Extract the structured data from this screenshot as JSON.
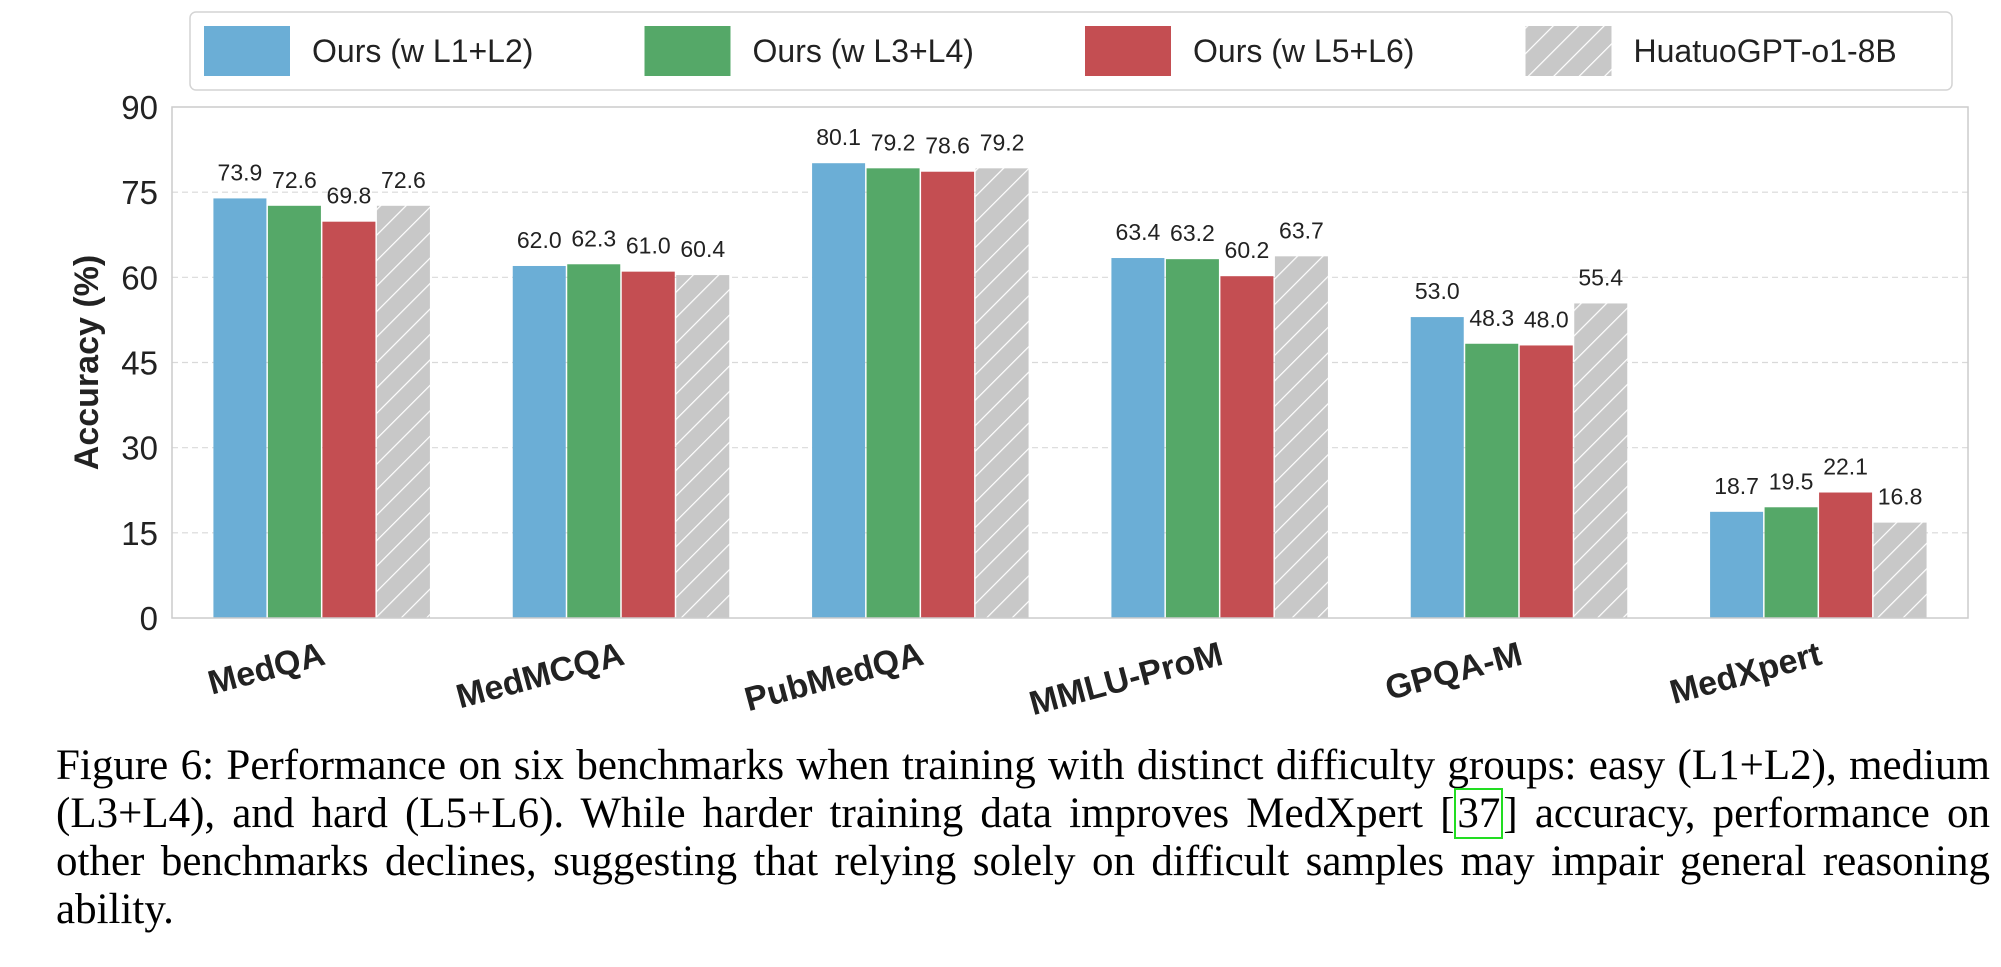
{
  "chart_data": {
    "type": "bar",
    "categories": [
      "MedQA",
      "MedMCQA",
      "PubMedQA",
      "MMLU-ProM",
      "GPQA-M",
      "MedXpert"
    ],
    "series": [
      {
        "name": "Ours (w L1+L2)",
        "values": [
          73.9,
          62.0,
          80.1,
          63.4,
          53.0,
          18.7
        ],
        "color": "#6baed6",
        "labels": [
          "73.9",
          "62.0",
          "80.1",
          "63.4",
          "53.0",
          "18.7"
        ],
        "hatch": false
      },
      {
        "name": "Ours (w L3+L4)",
        "values": [
          72.6,
          62.3,
          79.2,
          63.2,
          48.3,
          19.5
        ],
        "color": "#55a868",
        "labels": [
          "72.6",
          "62.3",
          "79.2",
          "63.2",
          "48.3",
          "19.5"
        ],
        "hatch": false
      },
      {
        "name": "Ours (w L5+L6)",
        "values": [
          69.8,
          61.0,
          78.6,
          60.2,
          48.0,
          22.1
        ],
        "color": "#c44e52",
        "labels": [
          "69.8",
          "61.0",
          "78.6",
          "60.2",
          "48.0",
          "22.1"
        ],
        "hatch": false
      },
      {
        "name": "HuatuoGPT-o1-8B",
        "values": [
          72.6,
          60.4,
          79.2,
          63.7,
          55.4,
          16.8
        ],
        "color": "#c8c8c8",
        "labels": [
          "72.6",
          "60.4",
          "79.2",
          "63.7",
          "55.4",
          "16.8"
        ],
        "hatch": true
      }
    ],
    "ylabel": "Accuracy (%)",
    "xlabel": "",
    "ylim": [
      0,
      90
    ],
    "yticks": [
      "0",
      "15",
      "30",
      "45",
      "60",
      "75",
      "90"
    ],
    "grid": true,
    "legend_position": "top"
  },
  "caption": {
    "prefix": "Figure 6:  Performance on six benchmarks when training with distinct difficulty groups:  easy (L1+L2), medium (L3+L4), and hard (L5+L6). While harder training data improves MedXpert [",
    "ref": "37",
    "suffix": "] accuracy, performance on other benchmarks declines, suggesting that relying solely on difficult samples may impair general reasoning ability."
  }
}
